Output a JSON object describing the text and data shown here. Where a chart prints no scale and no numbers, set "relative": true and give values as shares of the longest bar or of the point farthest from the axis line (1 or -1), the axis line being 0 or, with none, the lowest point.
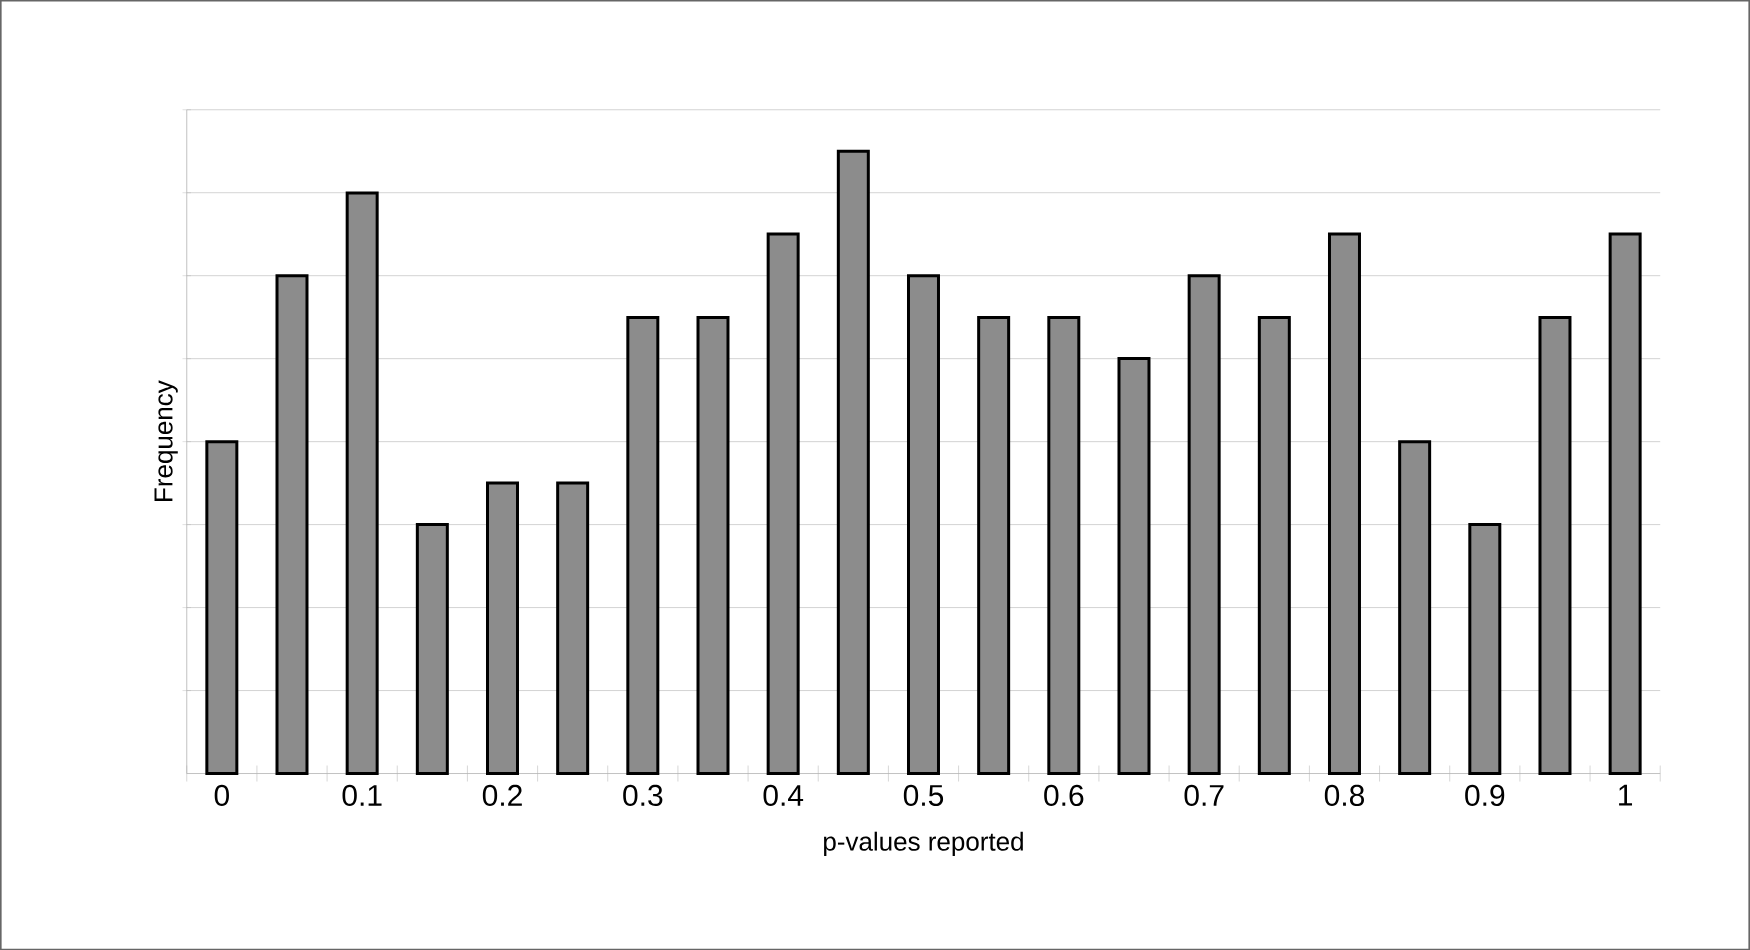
{
  "chart_data": {
    "type": "bar",
    "xlabel": "p-values reported",
    "ylabel": "Frequency",
    "categories": [
      "0",
      null,
      "0.1",
      null,
      "0.2",
      null,
      "0.3",
      null,
      "0.4",
      null,
      "0.5",
      null,
      "0.6",
      null,
      "0.7",
      null,
      "0.8",
      null,
      "0.9",
      null,
      "1"
    ],
    "values": [
      0.533,
      0.8,
      0.933,
      0.4,
      0.467,
      0.467,
      0.733,
      0.733,
      0.867,
      1,
      0.8,
      0.733,
      0.733,
      0.667,
      0.8,
      0.733,
      0.867,
      0.533,
      0.4,
      0.733,
      0.867
    ],
    "color": "#8c8c8c",
    "relative": true,
    "grid": "y"
  }
}
